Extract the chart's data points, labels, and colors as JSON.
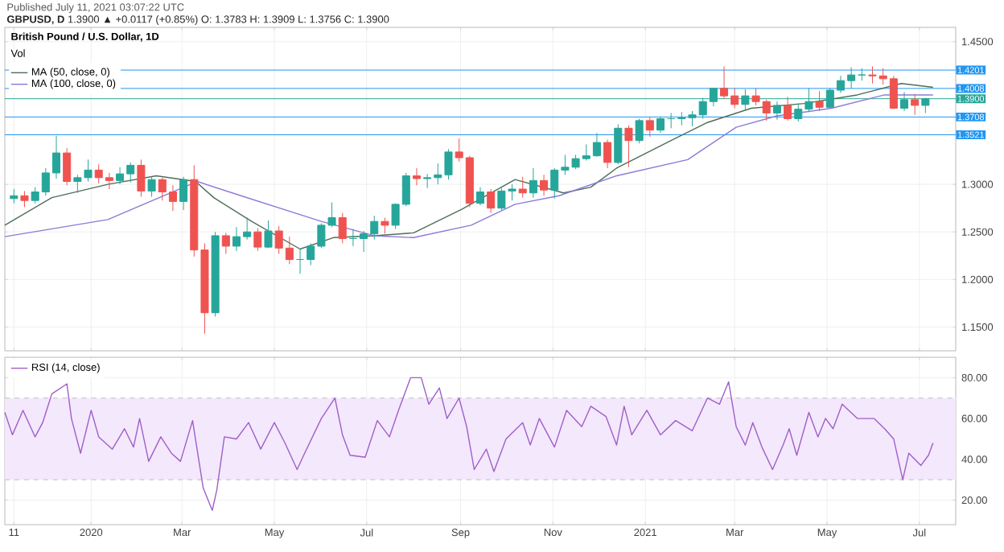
{
  "chart_data": [
    {
      "type": "candlestick",
      "title": "**GBPUSD, D** 1.3900 ▲ +0.0117 (+0.85%) O: 1.3783 H: 1.3909 L: 1.3756 C: 1.3900",
      "subtitle": "British Pound / U.S. Dollar, 1D",
      "annotations": [
        "Published July 11, 2021 03:07:22 UTC",
        "Vol"
      ],
      "x": [
        "2019-11-11",
        "2019-11-18",
        "2019-11-25",
        "2019-12-02",
        "2019-12-09",
        "2019-12-16",
        "2019-12-23",
        "2019-12-30",
        "2020-01-06",
        "2020-01-13",
        "2020-01-20",
        "2020-01-27",
        "2020-02-03",
        "2020-02-10",
        "2020-02-17",
        "2020-02-24",
        "2020-03-02",
        "2020-03-09",
        "2020-03-16",
        "2020-03-23",
        "2020-03-30",
        "2020-04-06",
        "2020-04-13",
        "2020-04-20",
        "2020-04-27",
        "2020-05-04",
        "2020-05-11",
        "2020-05-18",
        "2020-05-25",
        "2020-06-01",
        "2020-06-08",
        "2020-06-15",
        "2020-06-22",
        "2020-06-29",
        "2020-07-06",
        "2020-07-13",
        "2020-07-20",
        "2020-07-27",
        "2020-08-03",
        "2020-08-10",
        "2020-08-17",
        "2020-08-24",
        "2020-08-31",
        "2020-09-07",
        "2020-09-14",
        "2020-09-21",
        "2020-09-28",
        "2020-10-05",
        "2020-10-12",
        "2020-10-19",
        "2020-10-26",
        "2020-11-02",
        "2020-11-09",
        "2020-11-16",
        "2020-11-23",
        "2020-11-30",
        "2020-12-07",
        "2020-12-14",
        "2020-12-21",
        "2020-12-28",
        "2021-01-04",
        "2021-01-11",
        "2021-01-18",
        "2021-01-25",
        "2021-02-01",
        "2021-02-08",
        "2021-02-15",
        "2021-02-22",
        "2021-03-01",
        "2021-03-08",
        "2021-03-15",
        "2021-03-22",
        "2021-03-29",
        "2021-04-05",
        "2021-04-12",
        "2021-04-19",
        "2021-04-26",
        "2021-05-03",
        "2021-05-10",
        "2021-05-17",
        "2021-05-24",
        "2021-05-31",
        "2021-06-07",
        "2021-06-14",
        "2021-06-21",
        "2021-06-28",
        "2021-07-05"
      ],
      "ohlc": [
        [
          1.285,
          1.295,
          1.28,
          1.288
        ],
        [
          1.288,
          1.293,
          1.276,
          1.283
        ],
        [
          1.283,
          1.297,
          1.28,
          1.292
        ],
        [
          1.292,
          1.317,
          1.288,
          1.312
        ],
        [
          1.312,
          1.351,
          1.306,
          1.333
        ],
        [
          1.333,
          1.338,
          1.299,
          1.303
        ],
        [
          1.303,
          1.31,
          1.291,
          1.307
        ],
        [
          1.307,
          1.326,
          1.303,
          1.315
        ],
        [
          1.315,
          1.321,
          1.301,
          1.307
        ],
        [
          1.307,
          1.312,
          1.295,
          1.304
        ],
        [
          1.304,
          1.318,
          1.3,
          1.311
        ],
        [
          1.311,
          1.323,
          1.302,
          1.32
        ],
        [
          1.32,
          1.326,
          1.287,
          1.293
        ],
        [
          1.293,
          1.308,
          1.287,
          1.305
        ],
        [
          1.305,
          1.307,
          1.283,
          1.292
        ],
        [
          1.292,
          1.299,
          1.272,
          1.282
        ],
        [
          1.282,
          1.308,
          1.273,
          1.305
        ],
        [
          1.305,
          1.32,
          1.224,
          1.231
        ],
        [
          1.231,
          1.238,
          1.143,
          1.165
        ],
        [
          1.165,
          1.25,
          1.161,
          1.246
        ],
        [
          1.246,
          1.249,
          1.227,
          1.235
        ],
        [
          1.235,
          1.255,
          1.23,
          1.245
        ],
        [
          1.245,
          1.265,
          1.242,
          1.25
        ],
        [
          1.25,
          1.254,
          1.23,
          1.234
        ],
        [
          1.234,
          1.262,
          1.233,
          1.251
        ],
        [
          1.251,
          1.256,
          1.227,
          1.233
        ],
        [
          1.233,
          1.245,
          1.216,
          1.221
        ],
        [
          1.221,
          1.232,
          1.206,
          1.221
        ],
        [
          1.221,
          1.238,
          1.215,
          1.235
        ],
        [
          1.235,
          1.259,
          1.233,
          1.257
        ],
        [
          1.257,
          1.281,
          1.255,
          1.265
        ],
        [
          1.265,
          1.27,
          1.238,
          1.243
        ],
        [
          1.243,
          1.253,
          1.235,
          1.243
        ],
        [
          1.243,
          1.251,
          1.229,
          1.248
        ],
        [
          1.248,
          1.267,
          1.242,
          1.261
        ],
        [
          1.261,
          1.265,
          1.248,
          1.257
        ],
        [
          1.257,
          1.28,
          1.253,
          1.279
        ],
        [
          1.279,
          1.312,
          1.277,
          1.309
        ],
        [
          1.309,
          1.317,
          1.299,
          1.306
        ],
        [
          1.306,
          1.311,
          1.296,
          1.307
        ],
        [
          1.307,
          1.322,
          1.3,
          1.31
        ],
        [
          1.31,
          1.337,
          1.305,
          1.334
        ],
        [
          1.334,
          1.348,
          1.324,
          1.328
        ],
        [
          1.328,
          1.33,
          1.276,
          1.28
        ],
        [
          1.28,
          1.297,
          1.278,
          1.292
        ],
        [
          1.292,
          1.295,
          1.27,
          1.275
        ],
        [
          1.275,
          1.296,
          1.273,
          1.293
        ],
        [
          1.293,
          1.3,
          1.283,
          1.295
        ],
        [
          1.295,
          1.308,
          1.286,
          1.291
        ],
        [
          1.291,
          1.317,
          1.286,
          1.304
        ],
        [
          1.304,
          1.31,
          1.288,
          1.294
        ],
        [
          1.294,
          1.317,
          1.285,
          1.315
        ],
        [
          1.315,
          1.331,
          1.31,
          1.318
        ],
        [
          1.318,
          1.331,
          1.316,
          1.327
        ],
        [
          1.327,
          1.342,
          1.325,
          1.33
        ],
        [
          1.33,
          1.354,
          1.329,
          1.344
        ],
        [
          1.344,
          1.347,
          1.317,
          1.323
        ],
        [
          1.323,
          1.363,
          1.321,
          1.359
        ],
        [
          1.359,
          1.362,
          1.318,
          1.346
        ],
        [
          1.346,
          1.369,
          1.343,
          1.367
        ],
        [
          1.367,
          1.371,
          1.35,
          1.357
        ],
        [
          1.357,
          1.371,
          1.354,
          1.369
        ],
        [
          1.369,
          1.375,
          1.359,
          1.369
        ],
        [
          1.369,
          1.376,
          1.362,
          1.37
        ],
        [
          1.37,
          1.377,
          1.361,
          1.373
        ],
        [
          1.373,
          1.391,
          1.369,
          1.387
        ],
        [
          1.387,
          1.401,
          1.382,
          1.401
        ],
        [
          1.401,
          1.424,
          1.39,
          1.393
        ],
        [
          1.393,
          1.401,
          1.38,
          1.384
        ],
        [
          1.384,
          1.4,
          1.378,
          1.393
        ],
        [
          1.393,
          1.401,
          1.383,
          1.387
        ],
        [
          1.387,
          1.389,
          1.367,
          1.375
        ],
        [
          1.375,
          1.387,
          1.368,
          1.383
        ],
        [
          1.383,
          1.392,
          1.367,
          1.369
        ],
        [
          1.369,
          1.385,
          1.366,
          1.379
        ],
        [
          1.379,
          1.401,
          1.376,
          1.387
        ],
        [
          1.387,
          1.398,
          1.377,
          1.381
        ],
        [
          1.381,
          1.401,
          1.381,
          1.399
        ],
        [
          1.399,
          1.414,
          1.396,
          1.409
        ],
        [
          1.409,
          1.423,
          1.401,
          1.415
        ],
        [
          1.415,
          1.422,
          1.409,
          1.415
        ],
        [
          1.415,
          1.424,
          1.406,
          1.414
        ],
        [
          1.414,
          1.422,
          1.405,
          1.411
        ],
        [
          1.411,
          1.414,
          1.379,
          1.38
        ],
        [
          1.38,
          1.397,
          1.377,
          1.389
        ],
        [
          1.389,
          1.395,
          1.373,
          1.383
        ],
        [
          1.383,
          1.391,
          1.375,
          1.39
        ]
      ],
      "series": [
        {
          "type": "line",
          "name": "MA (50, close, 0)",
          "color": "#4e6e58",
          "x": [
            "2019-11-05",
            "2019-12-06",
            "2020-01-12",
            "2020-02-13",
            "2020-03-10",
            "2020-03-22",
            "2020-04-16",
            "2020-05-18",
            "2020-06-09",
            "2020-07-06",
            "2020-08-01",
            "2020-09-02",
            "2020-10-07",
            "2020-11-08",
            "2020-11-26",
            "2020-12-13",
            "2021-01-18",
            "2021-02-11",
            "2021-03-12",
            "2021-04-16",
            "2021-05-21",
            "2021-06-19",
            "2021-07-10"
          ],
          "values": [
            1.257,
            1.286,
            1.3,
            1.309,
            1.303,
            1.286,
            1.261,
            1.232,
            1.244,
            1.246,
            1.249,
            1.274,
            1.305,
            1.291,
            1.297,
            1.317,
            1.346,
            1.365,
            1.38,
            1.385,
            1.394,
            1.406,
            1.402
          ]
        },
        {
          "type": "line",
          "name": "MA (100, close, 0)",
          "color": "#8c7bd6",
          "x": [
            "2019-11-05",
            "2020-01-12",
            "2020-03-11",
            "2020-04-09",
            "2020-06-01",
            "2020-07-06",
            "2020-08-01",
            "2020-09-08",
            "2020-10-07",
            "2020-11-05",
            "2020-12-13",
            "2021-01-29",
            "2021-03-02",
            "2021-03-29",
            "2021-05-04",
            "2021-06-08",
            "2021-07-10"
          ],
          "values": [
            1.245,
            1.263,
            1.303,
            1.288,
            1.261,
            1.246,
            1.244,
            1.257,
            1.279,
            1.288,
            1.309,
            1.326,
            1.36,
            1.372,
            1.38,
            1.394,
            1.394
          ]
        }
      ],
      "xlim": [
        "2019-11-05",
        "2021-07-25"
      ],
      "xticks": [
        {
          "value": "2019-11-11",
          "label": null
        },
        {
          "value": "2020-01-01",
          "label": null
        },
        {
          "value": "2020-03-01",
          "label": null
        },
        {
          "value": "2020-05-01",
          "label": null
        },
        {
          "value": "2020-07-01",
          "label": null
        },
        {
          "value": "2020-09-01",
          "label": null
        },
        {
          "value": "2020-11-01",
          "label": null
        },
        {
          "value": "2021-01-01",
          "label": null
        },
        {
          "value": "2021-03-01",
          "label": null
        },
        {
          "value": "2021-05-01",
          "label": null
        },
        {
          "value": "2021-07-01",
          "label": null
        }
      ],
      "ylim": [
        1.125,
        1.465
      ],
      "yticks": [
        {
          "value": 1.15,
          "label": "1.1500"
        },
        {
          "value": 1.2,
          "label": "1.2000"
        },
        {
          "value": 1.25,
          "label": "1.2500"
        },
        {
          "value": 1.3,
          "label": "1.3000"
        },
        {
          "value": 1.45,
          "label": "1.4500"
        }
      ],
      "ref_lines": [
        {
          "axis": "y",
          "value": 1.4201,
          "label": "1.4201",
          "color": "#2196f3"
        },
        {
          "axis": "y",
          "value": 1.4008,
          "label": "1.4008",
          "color": "#2196f3"
        },
        {
          "axis": "y",
          "value": 1.39,
          "label": "1.3900",
          "color": "#26a69a"
        },
        {
          "axis": "y",
          "value": 1.3708,
          "label": "1.3708",
          "color": "#2196f3"
        },
        {
          "axis": "y",
          "value": 1.3521,
          "label": "1.3521",
          "color": "#2196f3"
        }
      ],
      "tick_labels": "y",
      "grid": true,
      "legend": "top left"
    },
    {
      "type": "line",
      "series": [
        {
          "name": "RSI (14, close)",
          "color": "#a05fc8",
          "x": [
            "2019-11-05",
            "2019-11-10",
            "2019-11-17",
            "2019-11-25",
            "2019-11-30",
            "2019-12-06",
            "2019-12-16",
            "2019-12-19",
            "2019-12-25",
            "2020-01-01",
            "2020-01-06",
            "2020-01-15",
            "2020-01-23",
            "2020-01-29",
            "2020-02-02",
            "2020-02-08",
            "2020-02-16",
            "2020-02-23",
            "2020-02-29",
            "2020-03-08",
            "2020-03-15",
            "2020-03-21",
            "2020-03-24",
            "2020-03-29",
            "2020-04-06",
            "2020-04-14",
            "2020-04-22",
            "2020-05-01",
            "2020-05-08",
            "2020-05-16",
            "2020-05-21",
            "2020-06-01",
            "2020-06-10",
            "2020-06-15",
            "2020-06-20",
            "2020-06-30",
            "2020-07-08",
            "2020-07-16",
            "2020-07-22",
            "2020-07-30",
            "2020-08-06",
            "2020-08-11",
            "2020-08-18",
            "2020-08-23",
            "2020-08-31",
            "2020-09-05",
            "2020-09-10",
            "2020-09-18",
            "2020-09-23",
            "2020-10-01",
            "2020-10-12",
            "2020-10-17",
            "2020-10-23",
            "2020-11-02",
            "2020-11-10",
            "2020-11-20",
            "2020-11-26",
            "2020-12-06",
            "2020-12-13",
            "2020-12-18",
            "2020-12-23",
            "2021-01-02",
            "2021-01-11",
            "2021-01-21",
            "2021-02-01",
            "2021-02-11",
            "2021-02-19",
            "2021-02-25",
            "2021-03-02",
            "2021-03-08",
            "2021-03-13",
            "2021-03-19",
            "2021-03-26",
            "2021-04-02",
            "2021-04-06",
            "2021-04-11",
            "2021-04-19",
            "2021-04-25",
            "2021-04-30",
            "2021-05-05",
            "2021-05-11",
            "2021-05-21",
            "2021-06-01",
            "2021-06-08",
            "2021-06-14",
            "2021-06-20",
            "2021-06-24",
            "2021-07-02",
            "2021-07-07",
            "2021-07-10"
          ],
          "values": [
            63,
            52,
            64,
            51,
            58,
            72,
            77,
            60,
            43,
            64,
            51,
            45,
            55,
            46,
            60,
            39,
            51,
            43,
            39,
            59,
            26,
            15,
            25,
            51,
            50,
            58,
            45,
            58,
            48,
            35,
            43,
            60,
            70,
            52,
            42,
            41,
            59,
            51,
            64,
            80,
            80,
            67,
            75,
            60,
            70,
            56,
            35,
            45,
            34,
            50,
            58,
            47,
            60,
            46,
            64,
            56,
            66,
            61,
            47,
            66,
            52,
            64,
            52,
            59,
            54,
            70,
            67,
            78,
            56,
            47,
            58,
            46,
            35,
            47,
            55,
            42,
            63,
            51,
            60,
            55,
            67,
            60,
            60,
            55,
            50,
            30,
            43,
            37,
            42,
            48
          ]
        }
      ],
      "xlim": [
        "2019-11-05",
        "2021-07-25"
      ],
      "xticks": [
        {
          "value": "2019-11-11",
          "label": "11"
        },
        {
          "value": "2020-01-01",
          "label": "2020"
        },
        {
          "value": "2020-03-01",
          "label": "Mar"
        },
        {
          "value": "2020-05-01",
          "label": "May"
        },
        {
          "value": "2020-07-01",
          "label": "Jul"
        },
        {
          "value": "2020-09-01",
          "label": "Sep"
        },
        {
          "value": "2020-11-01",
          "label": "Nov"
        },
        {
          "value": "2021-01-01",
          "label": "2021"
        },
        {
          "value": "2021-03-01",
          "label": "Mar"
        },
        {
          "value": "2021-05-01",
          "label": "May"
        },
        {
          "value": "2021-07-01",
          "label": "Jul"
        }
      ],
      "ylim": [
        8,
        90
      ],
      "yticks": [
        {
          "value": 20,
          "label": "20.00"
        },
        {
          "value": 40,
          "label": "40.00"
        },
        {
          "value": 60,
          "label": "60.00"
        },
        {
          "value": 80,
          "label": "80.00"
        }
      ],
      "bands": [
        {
          "axis": "y",
          "from": 30,
          "to": 70,
          "color": "#f3e8fc"
        }
      ],
      "ref_lines": [
        {
          "axis": "y",
          "value": 70,
          "color": "#bfbfbf",
          "line_style": "dashed"
        },
        {
          "axis": "y",
          "value": 30,
          "color": "#bfbfbf",
          "line_style": "dashed"
        }
      ],
      "grid": true,
      "legend": "top left"
    }
  ]
}
